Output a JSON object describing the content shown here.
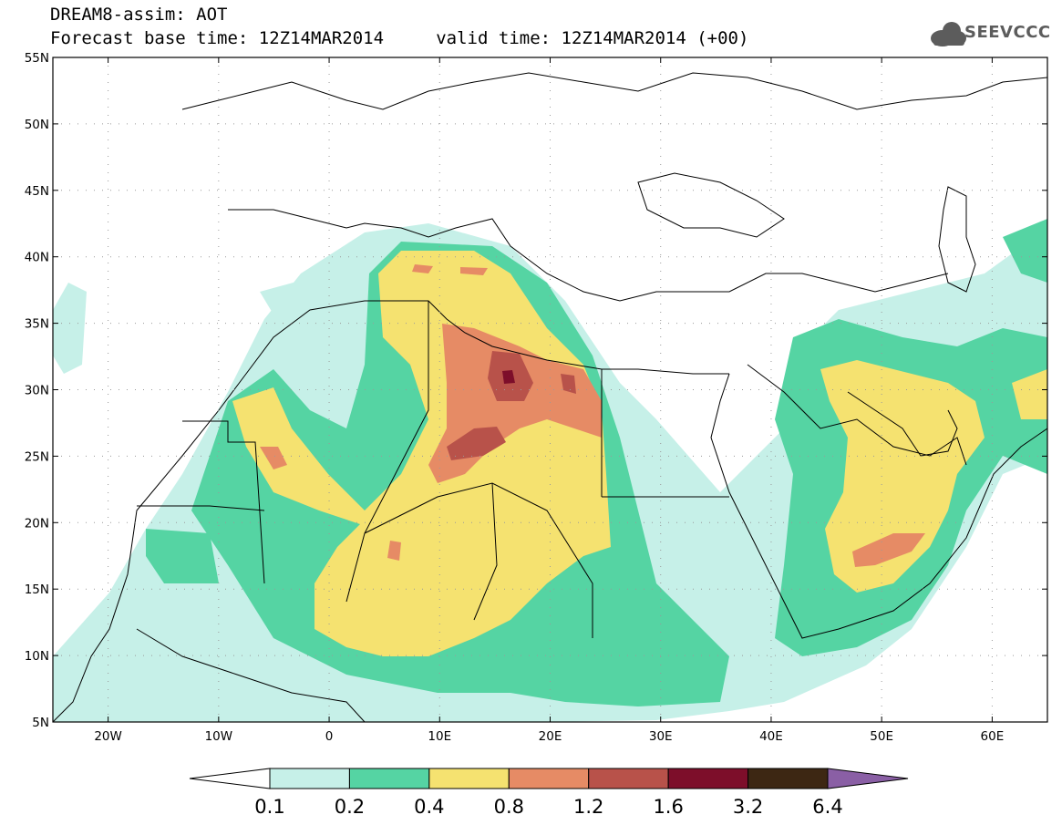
{
  "title": {
    "line1": "DREAM8-assim: AOT",
    "line2": "Forecast base time: 12Z14MAR2014     valid time: 12Z14MAR2014 (+00)"
  },
  "logo": {
    "text": "SEEVCCC",
    "icon": "cloud-icon",
    "color": "#5c5c5c"
  },
  "map": {
    "variable": "AOT",
    "lat_range": [
      5,
      55
    ],
    "lon_range": [
      -25,
      65
    ],
    "lat_ticks": [
      "55N",
      "50N",
      "45N",
      "40N",
      "35N",
      "30N",
      "25N",
      "20N",
      "15N",
      "10N",
      "5N"
    ],
    "lon_ticks": [
      "20W",
      "10W",
      "0",
      "10E",
      "20E",
      "30E",
      "40E",
      "50E",
      "60E"
    ],
    "gridlines": true
  },
  "colorbar": {
    "levels": [
      "0.1",
      "0.2",
      "0.4",
      "0.8",
      "1.2",
      "1.6",
      "3.2",
      "6.4"
    ],
    "colors": [
      "#ffffff",
      "#c6f0e8",
      "#55d4a3",
      "#f5e270",
      "#e68b65",
      "#b8524a",
      "#7d0e2a",
      "#3d2713",
      "#8a5fa5"
    ]
  }
}
